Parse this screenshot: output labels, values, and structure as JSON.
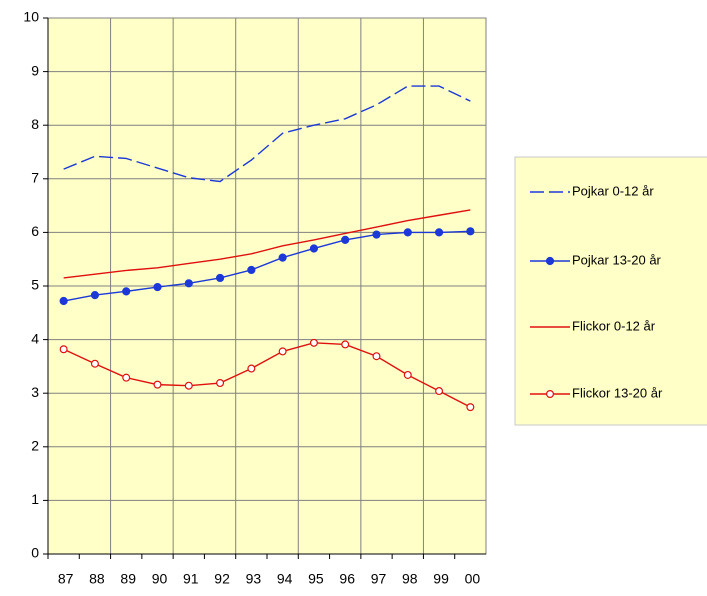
{
  "chart_data": {
    "type": "line",
    "categories": [
      "87",
      "88",
      "89",
      "90",
      "91",
      "92",
      "93",
      "94",
      "95",
      "96",
      "97",
      "98",
      "99",
      "00"
    ],
    "series": [
      {
        "name": "Pojkar 0-12 år",
        "color": "#1c39d8",
        "line_style": "dashed",
        "marker": "none",
        "values": [
          7.18,
          7.42,
          7.38,
          7.2,
          7.02,
          6.95,
          7.35,
          7.85,
          8.0,
          8.12,
          8.38,
          8.73,
          8.73,
          8.45
        ]
      },
      {
        "name": "Pojkar 13-20 år",
        "color": "#1c39d8",
        "line_style": "solid",
        "marker": "filled",
        "values": [
          4.72,
          4.83,
          4.9,
          4.98,
          5.05,
          5.15,
          5.3,
          5.53,
          5.7,
          5.86,
          5.96,
          6.0,
          6.0,
          6.02
        ]
      },
      {
        "name": "Flickor 0-12 år",
        "color": "#e01010",
        "line_style": "solid",
        "marker": "none",
        "values": [
          5.15,
          5.22,
          5.29,
          5.34,
          5.42,
          5.5,
          5.6,
          5.75,
          5.86,
          5.98,
          6.1,
          6.22,
          6.32,
          6.42
        ]
      },
      {
        "name": "Flickor 13-20 år",
        "color": "#e01010",
        "line_style": "solid",
        "marker": "open",
        "values": [
          3.82,
          3.55,
          3.29,
          3.16,
          3.14,
          3.19,
          3.46,
          3.78,
          3.94,
          3.91,
          3.69,
          3.34,
          3.04,
          2.74
        ]
      }
    ],
    "ylim": [
      0,
      10
    ],
    "yticks": [
      0,
      1,
      2,
      3,
      4,
      5,
      6,
      7,
      8,
      9,
      10
    ],
    "grid": true,
    "legend": "right",
    "plot_background": "#ffffc8"
  }
}
